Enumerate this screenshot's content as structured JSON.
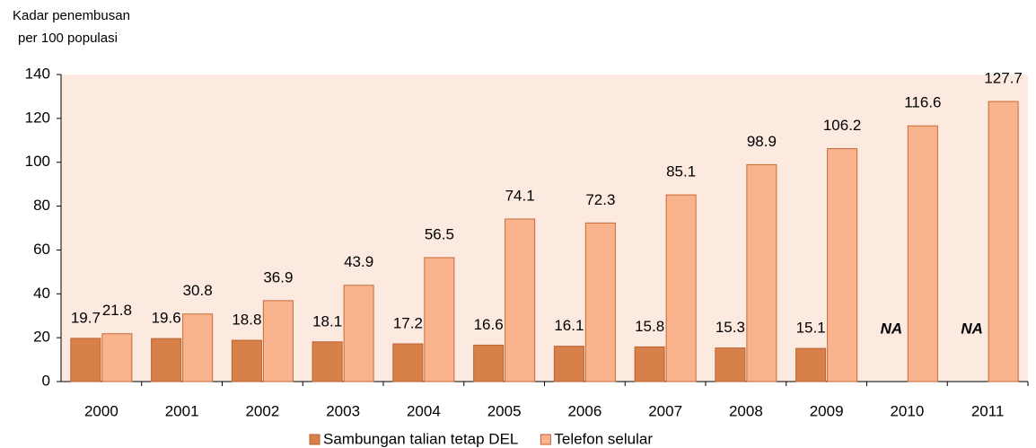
{
  "chart_data": {
    "type": "bar",
    "y_label_lines": [
      "Kadar penembusan",
      "per  100 populasi"
    ],
    "categories": [
      "2000",
      "2001",
      "2002",
      "2003",
      "2004",
      "2005",
      "2006",
      "2007",
      "2008",
      "2009",
      "2010",
      "2011"
    ],
    "series": [
      {
        "name": "Sambungan talian tetap DEL",
        "color": "#d8804a",
        "values": [
          19.7,
          19.6,
          18.8,
          18.1,
          17.2,
          16.6,
          16.1,
          15.8,
          15.3,
          15.1,
          null,
          null
        ],
        "value_labels": [
          "19.7",
          "19.6",
          "18.8",
          "18.1",
          "17.2",
          "16.6",
          "16.1",
          "15.8",
          "15.3",
          "15.1",
          "NA",
          "NA"
        ]
      },
      {
        "name": "Telefon selular",
        "color": "#f9b48e",
        "values": [
          21.8,
          30.8,
          36.9,
          43.9,
          56.5,
          74.1,
          72.3,
          85.1,
          98.9,
          106.2,
          116.6,
          127.7
        ]
      }
    ],
    "ylim": [
      0,
      140
    ],
    "yticks": [
      0,
      20,
      40,
      60,
      80,
      100,
      120,
      140
    ],
    "plot_background": "#fce9df"
  }
}
